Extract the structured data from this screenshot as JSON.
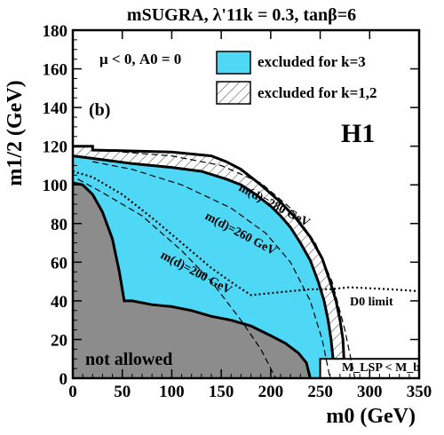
{
  "chart_data": {
    "type": "area",
    "title": "mSUGRA, λ'11k = 0.3, tanβ=6",
    "xlabel": "m0 (GeV)",
    "ylabel": "m1/2 (GeV)",
    "xlim": [
      0,
      350
    ],
    "ylim": [
      0,
      180
    ],
    "xticks": [
      0,
      50,
      100,
      150,
      200,
      250,
      300,
      350
    ],
    "yticks": [
      0,
      20,
      40,
      60,
      80,
      100,
      120,
      140,
      160,
      180
    ],
    "params_label": "μ < 0, A0 = 0",
    "panel_label": "(b)",
    "experiment_label": "H1",
    "legend": [
      {
        "label": "excluded for k=3",
        "style": "filled",
        "color": "#4fd8f5"
      },
      {
        "label": "excluded for k=1,2",
        "style": "hatched"
      }
    ],
    "regions": [
      {
        "name": "not allowed",
        "color": "#8c8c8c",
        "boundary": [
          [
            0,
            101
          ],
          [
            10,
            100
          ],
          [
            20,
            95
          ],
          [
            30,
            86
          ],
          [
            40,
            72
          ],
          [
            47,
            55
          ],
          [
            52,
            40
          ],
          [
            60,
            40
          ],
          [
            80,
            38
          ],
          [
            100,
            37
          ],
          [
            120,
            35
          ],
          [
            140,
            32
          ],
          [
            160,
            30
          ],
          [
            180,
            27
          ],
          [
            200,
            22
          ],
          [
            215,
            18
          ],
          [
            228,
            13
          ],
          [
            236,
            8
          ],
          [
            240,
            0
          ]
        ]
      },
      {
        "name": "excluded for k=3",
        "color": "#4fd8f5",
        "boundary": [
          [
            0,
            115
          ],
          [
            30,
            113
          ],
          [
            60,
            111
          ],
          [
            100,
            109
          ],
          [
            130,
            107
          ],
          [
            155,
            103
          ],
          [
            170,
            100
          ],
          [
            185,
            95
          ],
          [
            200,
            89
          ],
          [
            210,
            84
          ],
          [
            220,
            78
          ],
          [
            230,
            70
          ],
          [
            240,
            61
          ],
          [
            248,
            50
          ],
          [
            254,
            40
          ],
          [
            258,
            30
          ],
          [
            261,
            20
          ],
          [
            263,
            10
          ],
          [
            264,
            0
          ]
        ]
      },
      {
        "name": "excluded for k=1,2",
        "style": "hatched",
        "boundary": [
          [
            0,
            120
          ],
          [
            20,
            120
          ],
          [
            20,
            118
          ],
          [
            100,
            117
          ],
          [
            140,
            115
          ],
          [
            155,
            112
          ],
          [
            170,
            108
          ],
          [
            190,
            100
          ],
          [
            210,
            91
          ],
          [
            225,
            83
          ],
          [
            240,
            73
          ],
          [
            252,
            62
          ],
          [
            260,
            50
          ],
          [
            266,
            40
          ],
          [
            270,
            30
          ],
          [
            273,
            20
          ],
          [
            274,
            10
          ],
          [
            275,
            0
          ]
        ]
      }
    ],
    "series": [
      {
        "name": "m(d)=280 GeV",
        "style": "dashed",
        "x": [
          50,
          100,
          150,
          190,
          220,
          245,
          262,
          275,
          285
        ],
        "y": [
          117,
          115,
          110,
          101,
          88,
          70,
          50,
          25,
          0
        ]
      },
      {
        "name": "m(d)=260 GeV",
        "style": "dashed",
        "x": [
          20,
          60,
          110,
          160,
          195,
          220,
          240,
          252,
          260
        ],
        "y": [
          112,
          108,
          100,
          88,
          75,
          60,
          40,
          20,
          0
        ]
      },
      {
        "name": "m(d)=200 GeV",
        "style": "dashed",
        "x": [
          5,
          30,
          70,
          110,
          140,
          170,
          190,
          200,
          205
        ],
        "y": [
          103,
          96,
          84,
          66,
          50,
          30,
          15,
          5,
          0
        ]
      },
      {
        "name": "D0 limit",
        "style": "dotted",
        "x": [
          0,
          20,
          50,
          80,
          110,
          140,
          165,
          180,
          200,
          240,
          260,
          280,
          320,
          350
        ],
        "y": [
          107,
          104,
          95,
          83,
          70,
          57,
          48,
          43,
          44,
          46,
          46,
          47,
          46,
          45
        ]
      }
    ],
    "annotations": [
      "m(d)=280 GeV",
      "m(d)=260 GeV",
      "m(d)=200 GeV",
      "D0 limit",
      "not allowed",
      "M_LSP < M_b"
    ],
    "lsp_box": {
      "label": "M_LSP < M_b",
      "x": [
        250,
        350
      ],
      "y": [
        0,
        10
      ]
    }
  }
}
